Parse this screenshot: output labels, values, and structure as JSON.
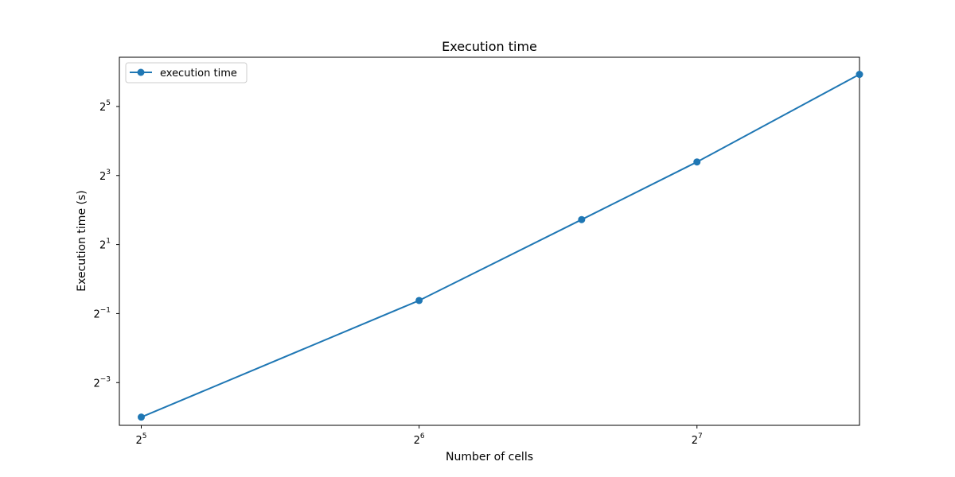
{
  "chart_data": {
    "type": "line",
    "title": "Execution time",
    "xlabel": "Number of cells",
    "ylabel": "Execution time (s)",
    "x_scale": "log2",
    "y_scale": "log2",
    "xlim": [
      30.3,
      192
    ],
    "ylim": [
      0.053,
      86
    ],
    "x_ticks": [
      {
        "value": 32,
        "base": "2",
        "exp": "5"
      },
      {
        "value": 64,
        "base": "2",
        "exp": "6"
      },
      {
        "value": 128,
        "base": "2",
        "exp": "7"
      }
    ],
    "y_ticks": [
      {
        "value": 0.125,
        "base": "2",
        "exp": "−3"
      },
      {
        "value": 0.5,
        "base": "2",
        "exp": "−1"
      },
      {
        "value": 2,
        "base": "2",
        "exp": "1"
      },
      {
        "value": 8,
        "base": "2",
        "exp": "3"
      },
      {
        "value": 32,
        "base": "2",
        "exp": "5"
      }
    ],
    "grid": false,
    "legend_position": "top-left",
    "series": [
      {
        "name": "execution time",
        "color": "#1f77b4",
        "marker": "circle",
        "x": [
          32,
          64,
          96,
          128,
          192
        ],
        "y": [
          0.0625,
          0.65,
          3.3,
          10.5,
          61
        ]
      }
    ]
  }
}
